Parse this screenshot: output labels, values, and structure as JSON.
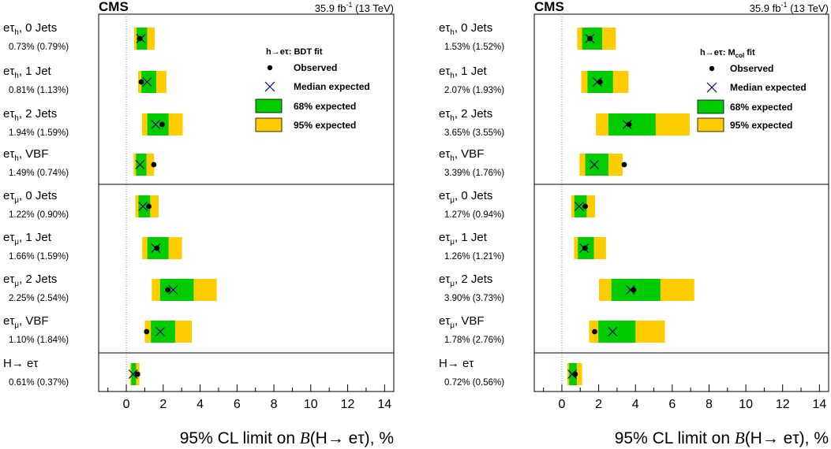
{
  "chart_data": [
    {
      "type": "limit-bands",
      "experiment": "CMS",
      "lumi_label": "35.9 fb",
      "lumi_exp": "-1",
      "energy": "(13 TeV)",
      "xlim": [
        -1.5,
        14.5
      ],
      "xticks": [
        0,
        2,
        4,
        6,
        8,
        10,
        12,
        14
      ],
      "xlabel_pre": "95% CL limit on ",
      "xlabel_B": "B",
      "xlabel_post": "(H→ eτ), %",
      "legend": {
        "title": "h→eτ: BDT fit",
        "observed": "Observed",
        "median": "Median expected",
        "band68": "68% expected",
        "band95": "95% expected"
      },
      "colors": {
        "band68": "#00cc00",
        "band95": "#ffcc00"
      },
      "rows": [
        {
          "channel": "eτ",
          "sub": "h",
          "suffix": ", 0 Jets",
          "values_text": "0.73% (0.79%)",
          "observed": 0.73,
          "expected": 0.79,
          "band68": [
            0.56,
            1.13
          ],
          "band95": [
            0.42,
            1.54
          ]
        },
        {
          "channel": "eτ",
          "sub": "h",
          "suffix": ", 1 Jet",
          "values_text": "0.81% (1.13%)",
          "observed": 0.81,
          "expected": 1.13,
          "band68": [
            0.82,
            1.62
          ],
          "band95": [
            0.64,
            2.17
          ]
        },
        {
          "channel": "eτ",
          "sub": "h",
          "suffix": ", 2 Jets",
          "values_text": "1.94% (1.59%)",
          "observed": 1.94,
          "expected": 1.59,
          "band68": [
            1.14,
            2.29
          ],
          "band95": [
            0.85,
            3.06
          ]
        },
        {
          "channel": "eτ",
          "sub": "h",
          "suffix": ", VBF",
          "values_text": "1.49% (0.74%)",
          "observed": 1.49,
          "expected": 0.74,
          "band68": [
            0.53,
            1.09
          ],
          "band95": [
            0.4,
            1.5
          ]
        },
        {
          "channel": "eτ",
          "sub": "μ",
          "suffix": ", 0 Jets",
          "values_text": "1.22% (0.90%)",
          "observed": 1.22,
          "expected": 0.9,
          "band68": [
            0.66,
            1.29
          ],
          "band95": [
            0.49,
            1.75
          ]
        },
        {
          "channel": "eτ",
          "sub": "μ",
          "suffix": ", 1 Jet",
          "values_text": "1.66% (1.59%)",
          "observed": 1.66,
          "expected": 1.59,
          "band68": [
            1.14,
            2.29
          ],
          "band95": [
            0.86,
            3.02
          ]
        },
        {
          "channel": "eτ",
          "sub": "μ",
          "suffix": ", 2 Jets",
          "values_text": "2.25% (2.54%)",
          "observed": 2.25,
          "expected": 2.54,
          "band68": [
            1.83,
            3.65
          ],
          "band95": [
            1.38,
            4.9
          ]
        },
        {
          "channel": "eτ",
          "sub": "μ",
          "suffix": ", VBF",
          "values_text": "1.10% (1.84%)",
          "observed": 1.1,
          "expected": 1.84,
          "band68": [
            1.33,
            2.65
          ],
          "band95": [
            1.0,
            3.55
          ]
        },
        {
          "channel": "H→ eτ",
          "sub": "",
          "suffix": "",
          "values_text": "0.61% (0.37%)",
          "observed": 0.61,
          "expected": 0.37,
          "band68": [
            0.27,
            0.53
          ],
          "band95": [
            0.2,
            0.71
          ]
        }
      ]
    },
    {
      "type": "limit-bands",
      "experiment": "CMS",
      "lumi_label": "35.9 fb",
      "lumi_exp": "-1",
      "energy": "(13 TeV)",
      "xlim": [
        -1.5,
        14.5
      ],
      "xticks": [
        0,
        2,
        4,
        6,
        8,
        10,
        12,
        14
      ],
      "xlabel_pre": "95% CL limit on ",
      "xlabel_B": "B",
      "xlabel_post": "(H→ eτ), %",
      "legend": {
        "title": "h→eτ: M",
        "title_sub": "col",
        "title_post": " fit",
        "observed": "Observed",
        "median": "Median expected",
        "band68": "68% expected",
        "band95": "95% expected"
      },
      "colors": {
        "band68": "#00cc00",
        "band95": "#ffcc00"
      },
      "rows": [
        {
          "channel": "eτ",
          "sub": "h",
          "suffix": ", 0 Jets",
          "values_text": "1.53% (1.52%)",
          "observed": 1.53,
          "expected": 1.52,
          "band68": [
            1.1,
            2.19
          ],
          "band95": [
            0.83,
            2.93
          ]
        },
        {
          "channel": "eτ",
          "sub": "h",
          "suffix": ", 1 Jet",
          "values_text": "2.07% (1.93%)",
          "observed": 2.07,
          "expected": 1.93,
          "band68": [
            1.39,
            2.78
          ],
          "band95": [
            1.05,
            3.62
          ]
        },
        {
          "channel": "eτ",
          "sub": "h",
          "suffix": ", 2 Jets",
          "values_text": "3.65% (3.55%)",
          "observed": 3.65,
          "expected": 3.55,
          "band68": [
            2.53,
            5.1
          ],
          "band95": [
            1.85,
            6.95
          ]
        },
        {
          "channel": "eτ",
          "sub": "h",
          "suffix": ", VBF",
          "values_text": "3.39% (1.76%)",
          "observed": 3.39,
          "expected": 1.76,
          "band68": [
            1.27,
            2.53
          ],
          "band95": [
            0.96,
            3.3
          ]
        },
        {
          "channel": "eτ",
          "sub": "μ",
          "suffix": ", 0 Jets",
          "values_text": "1.27% (0.94%)",
          "observed": 1.27,
          "expected": 0.94,
          "band68": [
            0.68,
            1.35
          ],
          "band95": [
            0.51,
            1.8
          ]
        },
        {
          "channel": "eτ",
          "sub": "μ",
          "suffix": ", 1 Jet",
          "values_text": "1.26% (1.21%)",
          "observed": 1.26,
          "expected": 1.21,
          "band68": [
            0.87,
            1.74
          ],
          "band95": [
            0.66,
            2.4
          ]
        },
        {
          "channel": "eτ",
          "sub": "μ",
          "suffix": ", 2 Jets",
          "values_text": "3.90% (3.73%)",
          "observed": 3.9,
          "expected": 3.73,
          "band68": [
            2.69,
            5.36
          ],
          "band95": [
            2.02,
            7.2
          ]
        },
        {
          "channel": "eτ",
          "sub": "μ",
          "suffix": ", VBF",
          "values_text": "1.78% (2.76%)",
          "observed": 1.78,
          "expected": 2.76,
          "band68": [
            1.98,
            4.0
          ],
          "band95": [
            1.48,
            5.6
          ]
        },
        {
          "channel": "H→ eτ",
          "sub": "",
          "suffix": "",
          "values_text": "0.72% (0.56%)",
          "observed": 0.72,
          "expected": 0.56,
          "band68": [
            0.4,
            0.81
          ],
          "band95": [
            0.3,
            1.1
          ]
        }
      ]
    }
  ]
}
